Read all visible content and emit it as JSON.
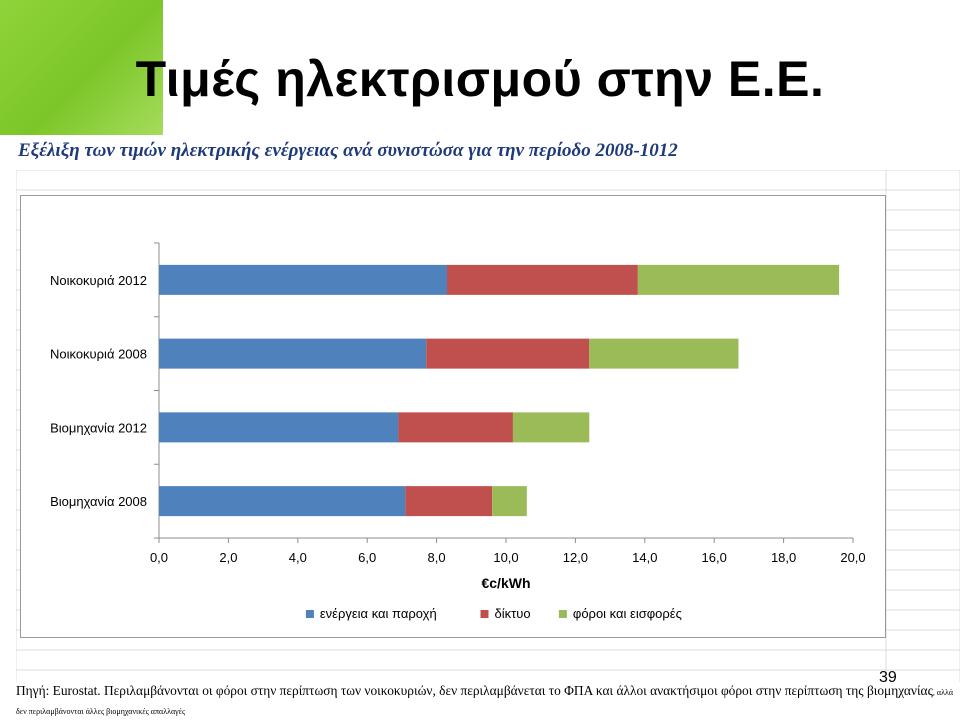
{
  "slide": {
    "title": "Τιμές ηλεκτρισμού στην Ε.Ε.",
    "page_number": "39",
    "source_main": "Πηγή: Eurostat. Περιλαμβάνονται οι φόροι στην περίπτωση των νοικοκυριών, δεν περιλαμβάνεται το ΦΠΑ και άλλοι ανακτήσιμοι φόροι στην περίπτωση της βιομηχανίας",
    "source_small": ", αλλά δεν περιλαμβάνονται άλλες βιομηχανικές απαλλαγές"
  },
  "chart_data": {
    "type": "bar",
    "orientation": "horizontal",
    "stacked": true,
    "title": "Εξέλιξη των τιμών ηλεκτρικής ενέργειας ανά συνιστώσα για την περίοδο 2008-1012",
    "xlabel": "€c/kWh",
    "ylabel": "",
    "xlim": [
      0,
      20
    ],
    "x_ticks": [
      "0,0",
      "2,0",
      "4,0",
      "6,0",
      "8,0",
      "10,0",
      "12,0",
      "14,0",
      "16,0",
      "18,0",
      "20,0"
    ],
    "categories": [
      "Νοικοκυριά 2012",
      "Νοικοκυριά 2008",
      "Βιομηχανία 2012",
      "Βιομηχανία 2008"
    ],
    "series": [
      {
        "name": "ενέργεια και παροχή",
        "color": "#4f81bd",
        "values": [
          8.3,
          7.7,
          6.9,
          7.1
        ]
      },
      {
        "name": "δίκτυο",
        "color": "#c0504d",
        "values": [
          5.5,
          4.7,
          3.3,
          2.5
        ]
      },
      {
        "name": "φόροι και εισφορές",
        "color": "#9bbb59",
        "values": [
          5.8,
          4.3,
          2.2,
          1.0
        ]
      }
    ],
    "grid": false,
    "legend_position": "bottom"
  },
  "colors": {
    "accent_green": "#7cc629",
    "subtitle_blue": "#1f3a7a"
  }
}
